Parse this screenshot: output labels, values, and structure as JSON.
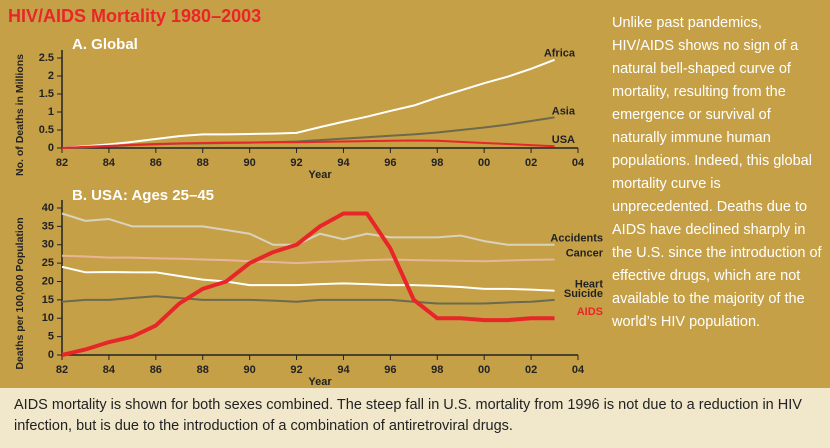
{
  "title": "HIV/AIDS Mortality 1980–2003",
  "sidebar": "Unlike past pandemics, HIV/AIDS shows no sign of a natural bell-shaped curve of mortality, resulting from the emergence or survival of naturally immune human populations. Indeed, this global mortality curve is unprecedented. Deaths due to AIDS have declined sharply in the U.S. since the introduction of effective drugs, which are not available to the majority of the world’s HIV population.",
  "caption": "AIDS mortality is shown for both sexes combined. The steep fall in U.S. mortality from 1996 is not due to a reduction in HIV infection, but is due to the introduction of a combination of antiretroviral drugs.",
  "chart_data": [
    {
      "type": "line",
      "title": "A. Global",
      "x_label": "Year",
      "y_label": "No. of Deaths in Millions",
      "x": [
        1982,
        1983,
        1984,
        1985,
        1986,
        1987,
        1988,
        1989,
        1990,
        1991,
        1992,
        1993,
        1994,
        1995,
        1996,
        1997,
        1998,
        1999,
        2000,
        2001,
        2002,
        2003
      ],
      "series": [
        {
          "name": "Africa",
          "color": "#ffffff",
          "width": 2,
          "values": [
            0,
            0.05,
            0.1,
            0.17,
            0.25,
            0.33,
            0.38,
            0.38,
            0.39,
            0.4,
            0.42,
            0.58,
            0.73,
            0.87,
            1.03,
            1.18,
            1.4,
            1.6,
            1.8,
            1.98,
            2.2,
            2.45
          ]
        },
        {
          "name": "Asia",
          "color": "#6b6a4e",
          "width": 2,
          "values": [
            0,
            0.02,
            0.05,
            0.08,
            0.1,
            0.12,
            0.13,
            0.14,
            0.15,
            0.16,
            0.18,
            0.22,
            0.26,
            0.3,
            0.34,
            0.38,
            0.43,
            0.5,
            0.57,
            0.65,
            0.75,
            0.85
          ]
        },
        {
          "name": "USA",
          "color": "#e8262a",
          "width": 2,
          "values": [
            0,
            0.03,
            0.06,
            0.09,
            0.11,
            0.13,
            0.14,
            0.15,
            0.15,
            0.16,
            0.16,
            0.17,
            0.18,
            0.19,
            0.2,
            0.21,
            0.2,
            0.17,
            0.14,
            0.11,
            0.08,
            0.05
          ]
        }
      ],
      "xlim": [
        1982,
        2004
      ],
      "xticks": [
        {
          "value": 1982,
          "label": "82"
        },
        {
          "value": 1984,
          "label": "84"
        },
        {
          "value": 1986,
          "label": "86"
        },
        {
          "value": 1988,
          "label": "88"
        },
        {
          "value": 1990,
          "label": "90"
        },
        {
          "value": 1992,
          "label": "92"
        },
        {
          "value": 1994,
          "label": "94"
        },
        {
          "value": 1996,
          "label": "96"
        },
        {
          "value": 1998,
          "label": "98"
        },
        {
          "value": 2000,
          "label": "00"
        },
        {
          "value": 2002,
          "label": "02"
        },
        {
          "value": 2004,
          "label": "04"
        }
      ],
      "ylim": [
        0,
        2.5
      ],
      "yticks": [
        0,
        0.5,
        1,
        1.5,
        2,
        2.5
      ]
    },
    {
      "type": "line",
      "title": "B. USA: Ages 25–45",
      "x_label": "Year",
      "y_label": "Deaths per 100,000 Population",
      "x": [
        1982,
        1983,
        1984,
        1985,
        1986,
        1987,
        1988,
        1989,
        1990,
        1991,
        1992,
        1993,
        1994,
        1995,
        1996,
        1997,
        1998,
        1999,
        2000,
        2001,
        2002,
        2003
      ],
      "series": [
        {
          "name": "Accidents",
          "color": "#d9d2bd",
          "width": 2,
          "values": [
            38.5,
            36.5,
            37,
            35,
            35,
            35,
            35,
            34,
            33,
            30,
            30,
            33,
            31.5,
            33,
            32,
            32,
            32,
            32.5,
            31,
            30,
            30,
            30
          ]
        },
        {
          "name": "Cancer",
          "color": "#eab49c",
          "width": 2,
          "values": [
            27,
            26.8,
            26.5,
            26.5,
            26.3,
            26.2,
            26,
            25.8,
            25.5,
            25.3,
            25,
            25.3,
            25.5,
            25.8,
            26,
            25.8,
            25.7,
            25.6,
            25.5,
            25.7,
            25.9,
            26
          ]
        },
        {
          "name": "Heart",
          "color": "#ffffff",
          "width": 2,
          "values": [
            24,
            22.5,
            22.6,
            22.5,
            22.5,
            21.5,
            20.5,
            20,
            19,
            19,
            19,
            19.3,
            19.5,
            19.3,
            19,
            19,
            18.8,
            18.5,
            18,
            18,
            17.8,
            17.5
          ]
        },
        {
          "name": "Suicide",
          "color": "#6b6a4e",
          "width": 2,
          "values": [
            14.5,
            15,
            15,
            15.5,
            16,
            15.5,
            15,
            15,
            15,
            14.8,
            14.5,
            15,
            15,
            15,
            15,
            14.5,
            14,
            14,
            14,
            14.3,
            14.5,
            15
          ]
        },
        {
          "name": "AIDS",
          "color": "#e8262a",
          "width": 4,
          "values": [
            0,
            1.5,
            3.5,
            5,
            8,
            14,
            18,
            20,
            25,
            28,
            30,
            35,
            38.5,
            38.5,
            29,
            15,
            10,
            10,
            9.5,
            9.5,
            10,
            10
          ]
        }
      ],
      "xlim": [
        1982,
        2004
      ],
      "xticks": [
        {
          "value": 1982,
          "label": "82"
        },
        {
          "value": 1984,
          "label": "84"
        },
        {
          "value": 1986,
          "label": "86"
        },
        {
          "value": 1988,
          "label": "88"
        },
        {
          "value": 1990,
          "label": "90"
        },
        {
          "value": 1992,
          "label": "92"
        },
        {
          "value": 1994,
          "label": "94"
        },
        {
          "value": 1996,
          "label": "96"
        },
        {
          "value": 1998,
          "label": "98"
        },
        {
          "value": 2000,
          "label": "00"
        },
        {
          "value": 2002,
          "label": "02"
        },
        {
          "value": 2004,
          "label": "04"
        }
      ],
      "ylim": [
        0,
        40
      ],
      "yticks": [
        0,
        5,
        10,
        15,
        20,
        25,
        30,
        35,
        40
      ]
    }
  ]
}
